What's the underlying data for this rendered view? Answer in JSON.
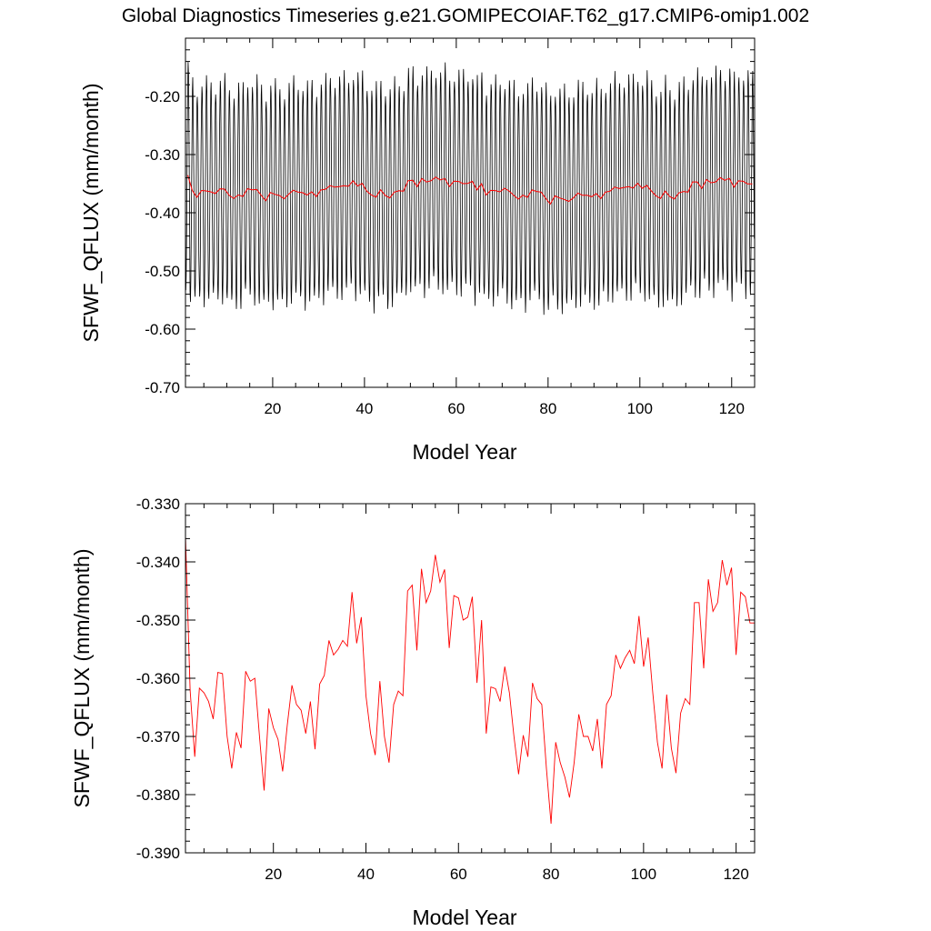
{
  "title": "Global Diagnostics Timeseries g.e21.GOMIPECOIAF.T62_g17.CMIP6-omip1.002",
  "colors": {
    "monthly": "#000000",
    "annual": "#ff0000",
    "frame": "#000000"
  },
  "chart_data": [
    {
      "type": "line",
      "xlabel": "Model Year",
      "ylabel": "SFWF_QFLUX (mm/month)",
      "xlim": [
        1,
        125
      ],
      "ylim": [
        -0.7,
        -0.1
      ],
      "x_ticks": [
        20,
        40,
        60,
        80,
        100,
        120
      ],
      "y_ticks": [
        -0.7,
        -0.6,
        -0.5,
        -0.4,
        -0.3,
        -0.2
      ],
      "x_tick_labels": [
        "20",
        "40",
        "60",
        "80",
        "100",
        "120"
      ],
      "y_tick_labels": [
        "-0.70",
        "-0.60",
        "-0.50",
        "-0.40",
        "-0.30",
        "-0.20"
      ],
      "series": [
        {
          "color": "#000000",
          "resolution": "monthly",
          "seasonal_cycle_note_values": {
            "annual_max_by_year_mean": -0.2,
            "annual_min_by_year_mean": -0.57
          }
        },
        {
          "color": "#ff0000",
          "resolution": "annual",
          "same_as": "annual series in panel 2"
        }
      ]
    },
    {
      "type": "line",
      "xlabel": "Model Year",
      "ylabel": "SFWF_QFLUX (mm/month)",
      "xlim": [
        1,
        124
      ],
      "ylim": [
        -0.39,
        -0.33
      ],
      "x_ticks": [
        20,
        40,
        60,
        80,
        100,
        120
      ],
      "y_ticks": [
        -0.39,
        -0.38,
        -0.37,
        -0.36,
        -0.35,
        -0.34,
        -0.33
      ],
      "x_tick_labels": [
        "20",
        "40",
        "60",
        "80",
        "100",
        "120"
      ],
      "y_tick_labels": [
        "-0.390",
        "-0.380",
        "-0.370",
        "-0.360",
        "-0.350",
        "-0.340",
        "-0.330"
      ],
      "series": [
        {
          "color": "#ff0000",
          "x_start": 1,
          "x_step": 1,
          "values": [
            -0.3355,
            -0.362,
            -0.3735,
            -0.3617,
            -0.3625,
            -0.364,
            -0.367,
            -0.359,
            -0.3592,
            -0.37,
            -0.3755,
            -0.3693,
            -0.372,
            -0.3588,
            -0.3605,
            -0.36,
            -0.37,
            -0.3793,
            -0.3652,
            -0.3685,
            -0.3705,
            -0.376,
            -0.368,
            -0.3612,
            -0.3645,
            -0.3655,
            -0.3695,
            -0.364,
            -0.3722,
            -0.361,
            -0.3595,
            -0.3535,
            -0.356,
            -0.355,
            -0.3535,
            -0.3545,
            -0.3452,
            -0.354,
            -0.3495,
            -0.363,
            -0.3695,
            -0.3732,
            -0.3605,
            -0.37,
            -0.3745,
            -0.3645,
            -0.3622,
            -0.363,
            -0.345,
            -0.344,
            -0.3552,
            -0.3412,
            -0.347,
            -0.345,
            -0.3388,
            -0.3435,
            -0.3413,
            -0.3548,
            -0.3458,
            -0.3462,
            -0.35,
            -0.3495,
            -0.346,
            -0.3608,
            -0.35,
            -0.3695,
            -0.3615,
            -0.3618,
            -0.364,
            -0.358,
            -0.3625,
            -0.37,
            -0.3765,
            -0.3698,
            -0.3735,
            -0.3608,
            -0.3635,
            -0.3645,
            -0.3755,
            -0.385,
            -0.371,
            -0.3745,
            -0.377,
            -0.3805,
            -0.3745,
            -0.3662,
            -0.37,
            -0.37,
            -0.3725,
            -0.367,
            -0.3755,
            -0.3645,
            -0.363,
            -0.356,
            -0.3583,
            -0.3565,
            -0.3552,
            -0.3575,
            -0.3493,
            -0.358,
            -0.353,
            -0.3625,
            -0.371,
            -0.3755,
            -0.3628,
            -0.372,
            -0.3763,
            -0.366,
            -0.3635,
            -0.3645,
            -0.347,
            -0.347,
            -0.3583,
            -0.343,
            -0.3485,
            -0.347,
            -0.3397,
            -0.344,
            -0.341,
            -0.356,
            -0.3452,
            -0.346,
            -0.3505,
            -0.3505
          ]
        }
      ]
    }
  ]
}
